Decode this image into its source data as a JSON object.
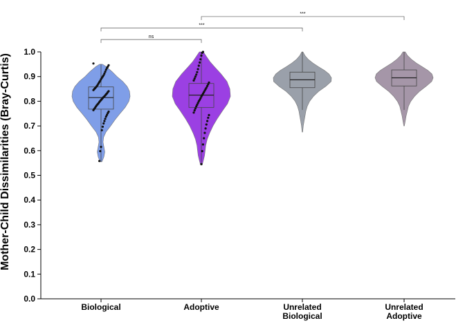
{
  "chart_data": {
    "type": "violin",
    "ylabel": "Mother-Child Dissimilarities (Bray-Curtis)",
    "ylim": [
      0,
      1
    ],
    "yticks": [
      "0.0",
      "0.1",
      "0.2",
      "0.3",
      "0.4",
      "0.5",
      "0.6",
      "0.7",
      "0.8",
      "0.9",
      "1.0"
    ],
    "groups": [
      {
        "lines": [
          "Biological"
        ],
        "color": "#7f9ee8",
        "min": 0.555,
        "max": 0.95,
        "q1": 0.768,
        "median": 0.815,
        "q3": 0.858,
        "whisker_low": 0.555,
        "whisker_high": 0.95,
        "density": [
          [
            0.555,
            0.03
          ],
          [
            0.575,
            0.1
          ],
          [
            0.595,
            0.13
          ],
          [
            0.615,
            0.1
          ],
          [
            0.635,
            0.07
          ],
          [
            0.655,
            0.09
          ],
          [
            0.675,
            0.17
          ],
          [
            0.7,
            0.33
          ],
          [
            0.725,
            0.48
          ],
          [
            0.75,
            0.65
          ],
          [
            0.775,
            0.83
          ],
          [
            0.8,
            0.96
          ],
          [
            0.82,
            1.0
          ],
          [
            0.84,
            0.98
          ],
          [
            0.86,
            0.9
          ],
          [
            0.88,
            0.75
          ],
          [
            0.9,
            0.55
          ],
          [
            0.92,
            0.38
          ],
          [
            0.94,
            0.18
          ],
          [
            0.95,
            0.05
          ]
        ],
        "points": [
          0.953,
          0.946,
          0.94,
          0.935,
          0.928,
          0.92,
          0.912,
          0.905,
          0.9,
          0.895,
          0.889,
          0.883,
          0.878,
          0.872,
          0.866,
          0.861,
          0.857,
          0.853,
          0.849,
          0.845,
          0.841,
          0.837,
          0.832,
          0.828,
          0.824,
          0.82,
          0.817,
          0.813,
          0.809,
          0.805,
          0.801,
          0.797,
          0.792,
          0.788,
          0.784,
          0.779,
          0.774,
          0.769,
          0.764,
          0.758,
          0.752,
          0.745,
          0.738,
          0.729,
          0.72,
          0.71,
          0.697,
          0.683,
          0.615,
          0.598,
          0.558
        ]
      },
      {
        "lines": [
          "Adoptive"
        ],
        "color": "#9b40e3",
        "min": 0.543,
        "max": 1.0,
        "q1": 0.775,
        "median": 0.825,
        "q3": 0.872,
        "whisker_low": 0.543,
        "whisker_high": 1.0,
        "density": [
          [
            0.543,
            0.03
          ],
          [
            0.56,
            0.07
          ],
          [
            0.58,
            0.11
          ],
          [
            0.6,
            0.13
          ],
          [
            0.62,
            0.15
          ],
          [
            0.645,
            0.2
          ],
          [
            0.67,
            0.28
          ],
          [
            0.7,
            0.4
          ],
          [
            0.73,
            0.55
          ],
          [
            0.76,
            0.72
          ],
          [
            0.79,
            0.9
          ],
          [
            0.82,
            1.0
          ],
          [
            0.85,
            0.98
          ],
          [
            0.88,
            0.88
          ],
          [
            0.91,
            0.68
          ],
          [
            0.94,
            0.45
          ],
          [
            0.96,
            0.3
          ],
          [
            0.98,
            0.18
          ],
          [
            1.0,
            0.07
          ]
        ],
        "points": [
          1.0,
          0.996,
          0.985,
          0.97,
          0.957,
          0.944,
          0.93,
          0.918,
          0.908,
          0.9,
          0.892,
          0.884,
          0.876,
          0.869,
          0.862,
          0.855,
          0.849,
          0.843,
          0.837,
          0.831,
          0.825,
          0.819,
          0.812,
          0.806,
          0.8,
          0.793,
          0.786,
          0.779,
          0.771,
          0.763,
          0.754,
          0.744,
          0.733,
          0.72,
          0.706,
          0.69,
          0.672,
          0.65,
          0.625,
          0.598,
          0.545
        ]
      },
      {
        "lines": [
          "Unrelated",
          "Biological"
        ],
        "color": "#9aa0aa",
        "min": 0.675,
        "max": 1.0,
        "q1": 0.855,
        "median": 0.887,
        "q3": 0.918,
        "whisker_low": 0.765,
        "whisker_high": 1.0,
        "density": [
          [
            0.675,
            0.01
          ],
          [
            0.7,
            0.03
          ],
          [
            0.72,
            0.06
          ],
          [
            0.74,
            0.09
          ],
          [
            0.76,
            0.12
          ],
          [
            0.78,
            0.17
          ],
          [
            0.8,
            0.25
          ],
          [
            0.82,
            0.38
          ],
          [
            0.84,
            0.56
          ],
          [
            0.86,
            0.8
          ],
          [
            0.88,
            0.99
          ],
          [
            0.895,
            1.0
          ],
          [
            0.91,
            0.92
          ],
          [
            0.925,
            0.76
          ],
          [
            0.94,
            0.55
          ],
          [
            0.955,
            0.36
          ],
          [
            0.97,
            0.2
          ],
          [
            0.985,
            0.09
          ],
          [
            1.0,
            0.02
          ]
        ],
        "points": []
      },
      {
        "lines": [
          "Unrelated",
          "Adoptive"
        ],
        "color": "#a596a8",
        "min": 0.7,
        "max": 1.0,
        "q1": 0.862,
        "median": 0.895,
        "q3": 0.927,
        "whisker_low": 0.765,
        "whisker_high": 1.0,
        "density": [
          [
            0.7,
            0.01
          ],
          [
            0.72,
            0.04
          ],
          [
            0.74,
            0.07
          ],
          [
            0.76,
            0.11
          ],
          [
            0.78,
            0.15
          ],
          [
            0.8,
            0.23
          ],
          [
            0.82,
            0.36
          ],
          [
            0.84,
            0.53
          ],
          [
            0.86,
            0.75
          ],
          [
            0.88,
            0.95
          ],
          [
            0.895,
            1.0
          ],
          [
            0.91,
            0.96
          ],
          [
            0.925,
            0.82
          ],
          [
            0.94,
            0.62
          ],
          [
            0.955,
            0.42
          ],
          [
            0.97,
            0.25
          ],
          [
            0.985,
            0.12
          ],
          [
            1.0,
            0.04
          ]
        ],
        "points": []
      }
    ],
    "significance": [
      {
        "from": 0,
        "to": 1,
        "level": 1.05,
        "label": "ns"
      },
      {
        "from": 0,
        "to": 2,
        "level": 1.097,
        "label": "***"
      },
      {
        "from": 1,
        "to": 3,
        "level": 1.143,
        "label": "***"
      }
    ]
  }
}
